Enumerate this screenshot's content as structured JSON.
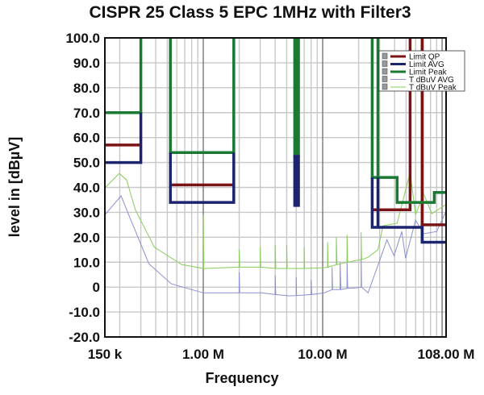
{
  "chart_data": {
    "type": "line",
    "title": "CISPR 25 Class 5 EPC 1MHz with Filter3",
    "xlabel": "Frequency",
    "ylabel": "level in [dBµV]",
    "xscale": "log",
    "xlim_mhz": [
      0.15,
      108
    ],
    "ylim": [
      -20,
      100
    ],
    "grid": true,
    "legend_placement": "top-right",
    "x_tick_labels": [
      {
        "f": 0.15,
        "label": "150 k"
      },
      {
        "f": 1,
        "label": "1.00 M"
      },
      {
        "f": 10,
        "label": "10.00 M"
      },
      {
        "f": 108,
        "label": "108.00 M"
      }
    ],
    "y_tick_labels": [
      "100.0",
      "90.0",
      "80.0",
      "70.0",
      "60.0",
      "50.0",
      "40.0",
      "30.0",
      "20.0",
      "10.0",
      "0",
      "-10.0",
      "-20.0"
    ],
    "y_tick_values": [
      100,
      90,
      80,
      70,
      60,
      50,
      40,
      30,
      20,
      10,
      0,
      -10,
      -20
    ],
    "series": [
      {
        "name": "Limit QP",
        "color": "#7a1414",
        "kind": "limit",
        "segments": [
          [
            [
              0.15,
              57
            ],
            [
              0.3,
              57
            ]
          ],
          [
            [
              0.53,
              41
            ],
            [
              1.8,
              41
            ]
          ],
          [
            [
              26,
              31
            ],
            [
              54,
              31
            ],
            [
              54,
              100
            ]
          ],
          [
            [
              68,
              100
            ],
            [
              68,
              25
            ],
            [
              108,
              25
            ]
          ]
        ]
      },
      {
        "name": "Limit AVG",
        "color": "#1c2470",
        "kind": "limit",
        "segments": [
          [
            [
              0.15,
              50
            ],
            [
              0.3,
              50
            ],
            [
              0.3,
              70
            ]
          ],
          [
            [
              0.53,
              54
            ],
            [
              0.53,
              34
            ],
            [
              1.8,
              34
            ],
            [
              1.8,
              54
            ]
          ],
          [
            [
              5.9,
              53
            ],
            [
              5.9,
              33
            ],
            [
              6.2,
              33
            ],
            [
              6.2,
              53
            ]
          ],
          [
            [
              26,
              44
            ],
            [
              26,
              24
            ],
            [
              68,
              24
            ],
            [
              68,
              18
            ],
            [
              108,
              18
            ]
          ],
          [
            [
              29,
              44
            ],
            [
              29,
              24
            ]
          ]
        ]
      },
      {
        "name": "Limit Peak",
        "color": "#1a7a32",
        "kind": "limit",
        "segments": [
          [
            [
              0.15,
              70
            ],
            [
              0.3,
              70
            ],
            [
              0.3,
              100
            ]
          ],
          [
            [
              0.53,
              100
            ],
            [
              0.53,
              54
            ],
            [
              1.8,
              54
            ],
            [
              1.8,
              100
            ]
          ],
          [
            [
              5.9,
              100
            ],
            [
              5.9,
              53
            ],
            [
              6.2,
              53
            ],
            [
              6.2,
              100
            ]
          ],
          [
            [
              26,
              100
            ],
            [
              26,
              44
            ],
            [
              42,
              44
            ],
            [
              42,
              34
            ],
            [
              86,
              34
            ],
            [
              86,
              38
            ],
            [
              108,
              38
            ]
          ],
          [
            [
              29,
              100
            ],
            [
              29,
              44
            ]
          ]
        ]
      },
      {
        "name": "T dBuV AVG",
        "color": "#8c8fd0",
        "kind": "measurement",
        "points": [
          [
            0.15,
            29
          ],
          [
            0.205,
            36.6
          ],
          [
            0.247,
            27
          ],
          [
            0.35,
            9.4
          ],
          [
            0.54,
            1.3
          ],
          [
            1.0,
            -2.3
          ],
          [
            2.0,
            -2.3
          ],
          [
            2.0,
            6
          ],
          [
            2.02,
            -2.3
          ],
          [
            3.1,
            -2.3
          ],
          [
            4.0,
            -3
          ],
          [
            4.0,
            5
          ],
          [
            4.05,
            -3
          ],
          [
            5.2,
            -3.5
          ],
          [
            6.0,
            -3.4
          ],
          [
            6.0,
            4
          ],
          [
            6.05,
            -3.4
          ],
          [
            8.0,
            -3
          ],
          [
            8.0,
            3
          ],
          [
            8.1,
            -3
          ],
          [
            10.3,
            -2.3
          ],
          [
            12,
            -1
          ],
          [
            12,
            8
          ],
          [
            12.1,
            -1
          ],
          [
            14,
            -1
          ],
          [
            14,
            10
          ],
          [
            14.2,
            -1
          ],
          [
            16,
            -0.5
          ],
          [
            16,
            11
          ],
          [
            16.2,
            -0.5
          ],
          [
            19,
            -0.3
          ],
          [
            21,
            0
          ],
          [
            21,
            12
          ],
          [
            21.2,
            0
          ],
          [
            24,
            -2.3
          ],
          [
            31,
            12.6
          ],
          [
            34.5,
            19
          ],
          [
            39.6,
            12.6
          ],
          [
            46,
            22.3
          ],
          [
            49.5,
            11.6
          ],
          [
            60,
            26.9
          ],
          [
            70,
            21.4
          ],
          [
            90,
            22.3
          ],
          [
            107,
            30
          ]
        ]
      },
      {
        "name": "T dBuV Peak",
        "color": "#86cc5a",
        "kind": "measurement",
        "points": [
          [
            0.15,
            39.8
          ],
          [
            0.198,
            45.6
          ],
          [
            0.228,
            43
          ],
          [
            0.27,
            31
          ],
          [
            0.39,
            16
          ],
          [
            0.66,
            9
          ],
          [
            1.0,
            7.5
          ],
          [
            1.0,
            29
          ],
          [
            1.01,
            7.5
          ],
          [
            2.0,
            8
          ],
          [
            2.0,
            15
          ],
          [
            2.02,
            8
          ],
          [
            3.0,
            8
          ],
          [
            3.0,
            16
          ],
          [
            3.03,
            8
          ],
          [
            4.0,
            7.5
          ],
          [
            4.0,
            17
          ],
          [
            4.05,
            7.5
          ],
          [
            5.0,
            7.5
          ],
          [
            5.0,
            17
          ],
          [
            5.05,
            7.5
          ],
          [
            7.0,
            7.5
          ],
          [
            7.0,
            16
          ],
          [
            7.07,
            7.5
          ],
          [
            10.3,
            7.8
          ],
          [
            11,
            8
          ],
          [
            11,
            18
          ],
          [
            11.1,
            8
          ],
          [
            13,
            9
          ],
          [
            13,
            20
          ],
          [
            13.2,
            9
          ],
          [
            16,
            10
          ],
          [
            16,
            21
          ],
          [
            16.2,
            10
          ],
          [
            19,
            10.7
          ],
          [
            21,
            11
          ],
          [
            21,
            22
          ],
          [
            21.2,
            11
          ],
          [
            24,
            12
          ],
          [
            29,
            15
          ],
          [
            32,
            24.6
          ],
          [
            42,
            25.6
          ],
          [
            54,
            46
          ],
          [
            60,
            29
          ],
          [
            70,
            37.5
          ],
          [
            82,
            29.5
          ],
          [
            107,
            33
          ]
        ]
      }
    ]
  }
}
